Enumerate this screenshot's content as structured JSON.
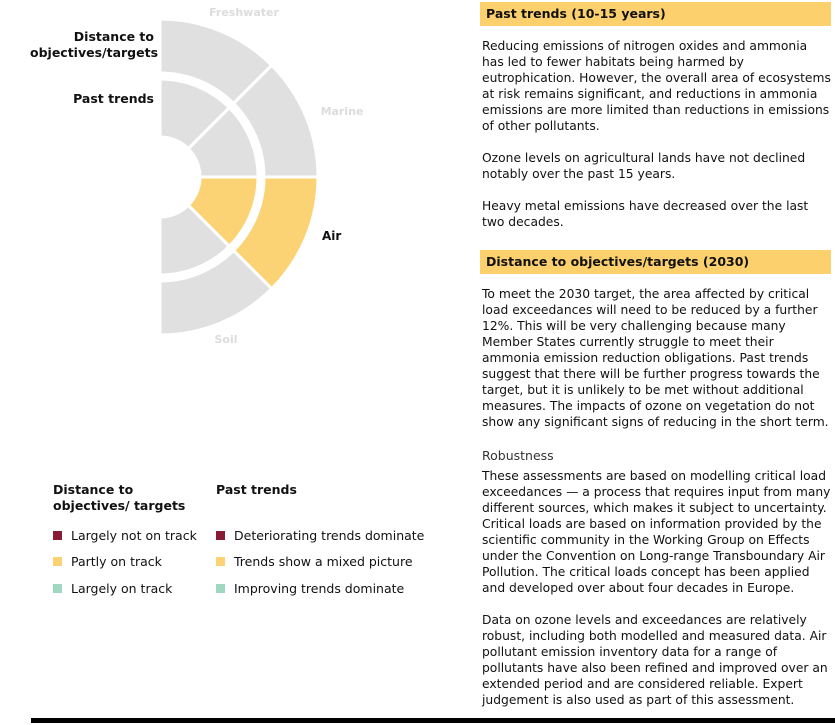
{
  "wheel": {
    "segments": [
      "Freshwater",
      "Marine",
      "Air",
      "Soil"
    ],
    "highlighted": "Air"
  },
  "ring_labels": {
    "outer": "Distance to objectives/targets",
    "inner": "Past trends"
  },
  "legend": {
    "distance_header": "Distance to objectives/ targets",
    "trends_header": "Past trends",
    "distance_items": [
      "Largely not on track",
      "Partly on track",
      "Largely on track"
    ],
    "trend_items": [
      "Deteriorating trends dominate",
      "Trends show a mixed picture",
      "Improving trends dominate"
    ]
  },
  "colors": {
    "red": "#8a1b35",
    "yellow": "#fcd374",
    "green": "#9ed8c1",
    "grey": "#e0e0e0",
    "header_bg": "#fdd06e"
  },
  "past_trends": {
    "header": "Past trends (10-15 years)",
    "paragraphs": [
      "Reducing emissions of nitrogen oxides and ammonia has led to fewer habitats being harmed by eutrophication. However, the overall area of ecosystems at risk remains significant, and reductions in ammonia emissions are more limited than reductions in emissions of other pollutants.",
      "Ozone levels on agricultural lands have not declined notably over the past 15 years.",
      "Heavy metal emissions have decreased over the last two decades."
    ]
  },
  "distance": {
    "header": "Distance to objectives/targets (2030)",
    "paragraphs": [
      "To meet the 2030 target, the area affected by critical load exceedances will need to be reduced by a further 12%. This will be very challenging because many Member States currently struggle to meet their ammonia emission reduction obligations. Past trends suggest that there will be further progress towards the target, but it is unlikely to be met without additional measures. The impacts of ozone on vegetation do not show any significant signs of reducing in the short term."
    ]
  },
  "robustness": {
    "title": "Robustness",
    "paragraphs": [
      "These assessments are based on modelling critical load exceedances — a process that requires input from many different sources, which makes it subject to uncertainty. Critical loads are based on information provided by the scientific community in the Working Group on Effects under the Convention on Long-range Transboundary Air Pollution. The critical loads concept has been applied and developed over about four decades in Europe.",
      "Data on ozone levels and exceedances are relatively robust, including both modelled and measured data. Air pollutant emission inventory data for a range of pollutants have also been refined and improved over an extended period and are considered reliable. Expert judgement is also used as part of this assessment."
    ]
  }
}
